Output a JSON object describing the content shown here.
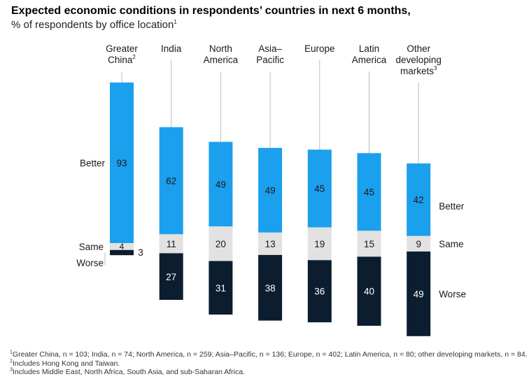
{
  "header": {
    "title": "Expected economic conditions in respondents’ countries in next 6 months,",
    "subtitle": "% of respondents by office location",
    "subtitle_note": "1"
  },
  "colors": {
    "better": "#1ba0ee",
    "same": "#e2e2e2",
    "worse": "#0b1d2f",
    "leader": "#bdbdbd"
  },
  "chart_data": {
    "type": "bar",
    "stacked": true,
    "categories": [
      {
        "lines": [
          "Greater",
          "China"
        ],
        "note": "2"
      },
      {
        "lines": [
          "India"
        ],
        "note": ""
      },
      {
        "lines": [
          "North",
          "America"
        ],
        "note": ""
      },
      {
        "lines": [
          "Asia–",
          "Pacific"
        ],
        "note": ""
      },
      {
        "lines": [
          "Europe"
        ],
        "note": ""
      },
      {
        "lines": [
          "Latin",
          "America"
        ],
        "note": ""
      },
      {
        "lines": [
          "Other",
          "developing",
          "markets"
        ],
        "note": "3"
      }
    ],
    "series": [
      {
        "name": "Better",
        "values": [
          93,
          62,
          49,
          49,
          45,
          45,
          42
        ]
      },
      {
        "name": "Same",
        "values": [
          4,
          11,
          20,
          13,
          19,
          15,
          9
        ]
      },
      {
        "name": "Worse",
        "values": [
          3,
          27,
          31,
          38,
          36,
          40,
          49
        ]
      }
    ]
  },
  "footnotes": [
    {
      "mark": "1",
      "text": "Greater China, n = 103; India, n = 74; North America, n = 259; Asia–Pacific, n = 136; Europe, n = 402; Latin America, n = 80; other developing markets, n = 84."
    },
    {
      "mark": "2",
      "text": "Includes Hong Kong and Taiwan."
    },
    {
      "mark": "3",
      "text": "Includes Middle East, North Africa, South Asia, and sub-Saharan Africa."
    }
  ]
}
